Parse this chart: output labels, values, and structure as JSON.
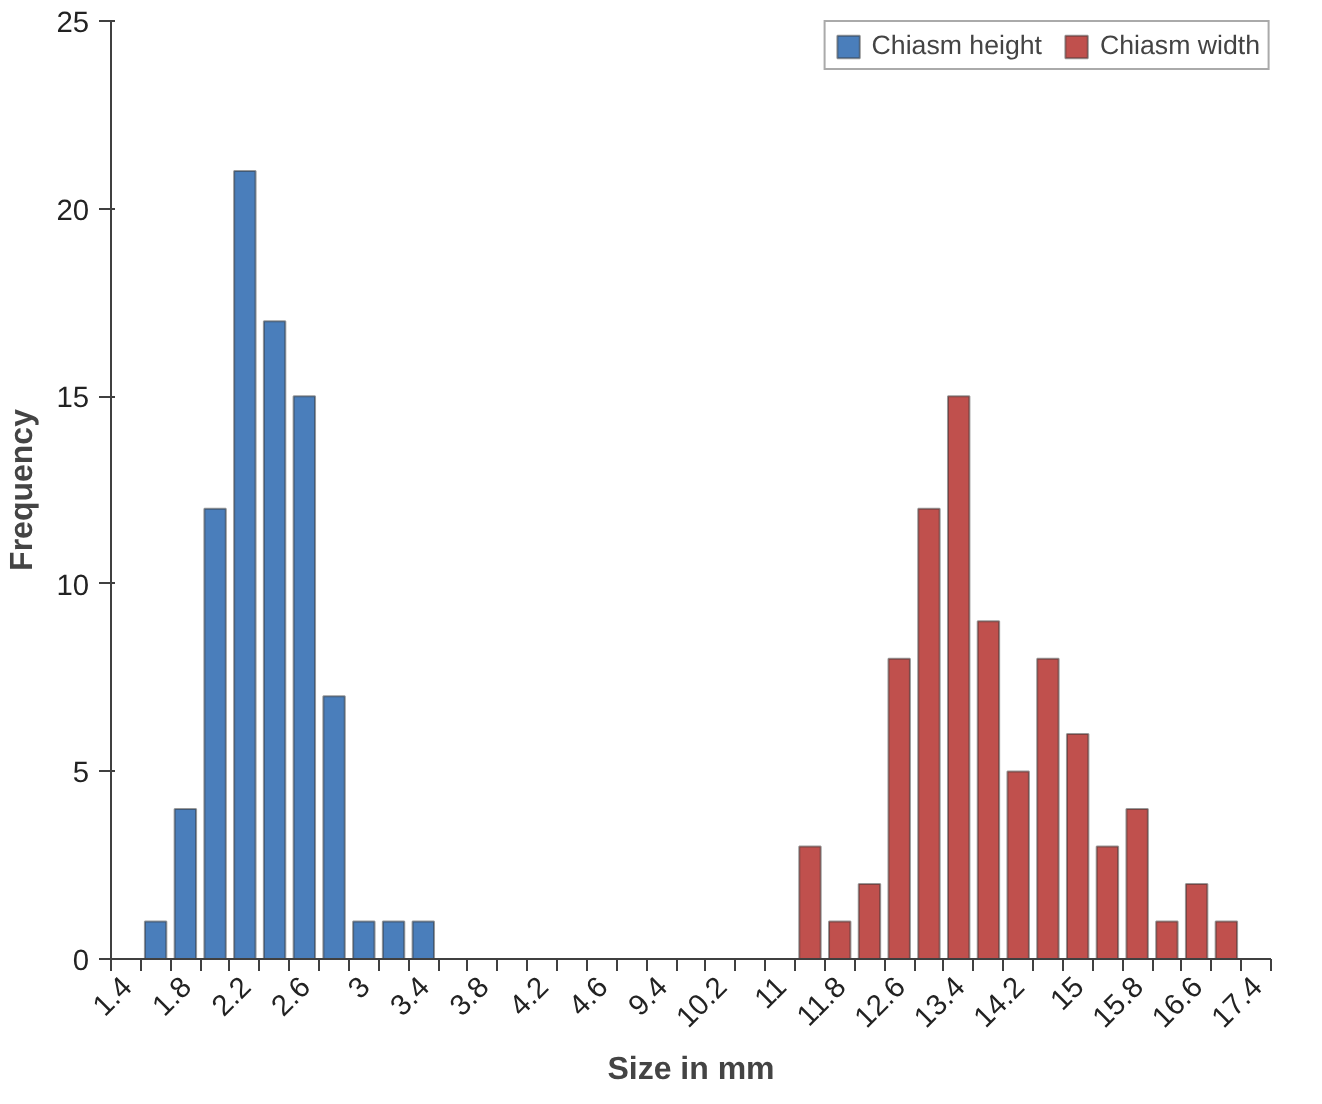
{
  "chart_data": {
    "type": "bar",
    "xlabel": "Size in mm",
    "ylabel": "Frequency",
    "categories": [
      "1.4",
      null,
      "1.8",
      null,
      "2.2",
      null,
      "2.6",
      null,
      "3",
      null,
      "3.4",
      null,
      "3.8",
      null,
      "4.2",
      null,
      "4.6",
      null,
      "9.4",
      null,
      "10.2",
      null,
      "11",
      null,
      "11.8",
      null,
      "12.6",
      null,
      "13.4",
      null,
      "14.2",
      null,
      "15",
      null,
      "15.8",
      null,
      "16.6",
      null,
      "17.4"
    ],
    "series": [
      {
        "name": "Chiasm height",
        "color": "#4a7ebb",
        "values": [
          null,
          1,
          4,
          12,
          21,
          17,
          15,
          7,
          1,
          1,
          1,
          null,
          null,
          null,
          null,
          null,
          null,
          null,
          null,
          null,
          null,
          null,
          null,
          null,
          null,
          null,
          null,
          null,
          null,
          null,
          null,
          null,
          null,
          null,
          null,
          null,
          null,
          null,
          null
        ]
      },
      {
        "name": "Chiasm width",
        "color": "#c0504d",
        "values": [
          null,
          null,
          null,
          null,
          null,
          null,
          null,
          null,
          null,
          null,
          null,
          null,
          null,
          null,
          null,
          null,
          null,
          null,
          null,
          null,
          null,
          null,
          null,
          3,
          1,
          2,
          8,
          12,
          15,
          9,
          5,
          8,
          6,
          3,
          4,
          1,
          2,
          1,
          null
        ]
      }
    ],
    "ylim": [
      0,
      25
    ],
    "yticks": [
      0,
      5,
      10,
      15,
      20,
      25
    ],
    "grid": false,
    "legend": "top right"
  }
}
